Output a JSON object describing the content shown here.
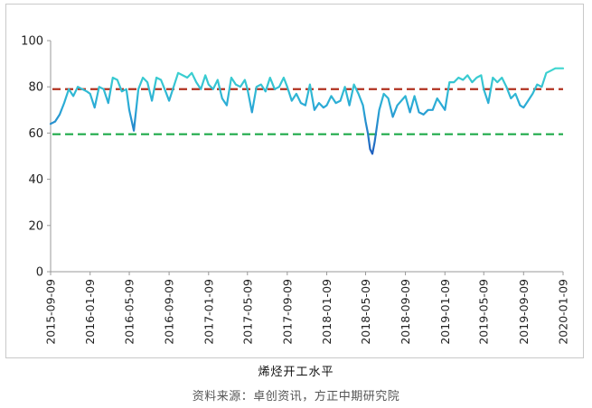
{
  "chart_data": {
    "type": "line",
    "title": "",
    "xlabel": "",
    "ylabel": "",
    "ylim": [
      0,
      100
    ],
    "yticks": [
      0,
      20,
      40,
      60,
      80,
      100
    ],
    "x_ticks": [
      "2015-09-09",
      "2016-01-09",
      "2016-05-09",
      "2016-09-09",
      "2017-01-09",
      "2017-05-09",
      "2017-09-09",
      "2018-01-09",
      "2018-05-09",
      "2018-09-09",
      "2019-01-09",
      "2019-05-09",
      "2019-09-09",
      "2020-01-09"
    ],
    "grid": false,
    "series": [
      {
        "name": "烯烃开工水平",
        "color_start": "#1f5fbf",
        "color_end": "#3ed6cf",
        "points": [
          [
            "2015-09-09",
            64
          ],
          [
            "2015-09-23",
            65
          ],
          [
            "2015-10-07",
            68
          ],
          [
            "2015-10-21",
            73
          ],
          [
            "2015-11-04",
            79
          ],
          [
            "2015-11-18",
            76
          ],
          [
            "2015-12-02",
            80
          ],
          [
            "2015-12-16",
            79
          ],
          [
            "2015-12-30",
            78
          ],
          [
            "2016-01-09",
            77
          ],
          [
            "2016-01-23",
            71
          ],
          [
            "2016-02-06",
            80
          ],
          [
            "2016-02-20",
            79
          ],
          [
            "2016-03-05",
            73
          ],
          [
            "2016-03-19",
            84
          ],
          [
            "2016-04-02",
            83
          ],
          [
            "2016-04-16",
            78
          ],
          [
            "2016-04-30",
            79
          ],
          [
            "2016-05-09",
            70
          ],
          [
            "2016-05-23",
            61
          ],
          [
            "2016-06-06",
            79
          ],
          [
            "2016-06-20",
            84
          ],
          [
            "2016-07-04",
            82
          ],
          [
            "2016-07-18",
            74
          ],
          [
            "2016-08-01",
            84
          ],
          [
            "2016-08-15",
            83
          ],
          [
            "2016-08-29",
            78
          ],
          [
            "2016-09-09",
            74
          ],
          [
            "2016-09-23",
            80
          ],
          [
            "2016-10-07",
            86
          ],
          [
            "2016-10-21",
            85
          ],
          [
            "2016-11-04",
            84
          ],
          [
            "2016-11-18",
            86
          ],
          [
            "2016-12-02",
            82
          ],
          [
            "2016-12-16",
            79
          ],
          [
            "2016-12-30",
            85
          ],
          [
            "2017-01-09",
            81
          ],
          [
            "2017-01-23",
            79
          ],
          [
            "2017-02-06",
            83
          ],
          [
            "2017-02-20",
            75
          ],
          [
            "2017-03-06",
            72
          ],
          [
            "2017-03-20",
            84
          ],
          [
            "2017-04-03",
            81
          ],
          [
            "2017-04-17",
            80
          ],
          [
            "2017-05-01",
            83
          ],
          [
            "2017-05-09",
            79
          ],
          [
            "2017-05-23",
            69
          ],
          [
            "2017-06-06",
            80
          ],
          [
            "2017-06-20",
            81
          ],
          [
            "2017-07-04",
            78
          ],
          [
            "2017-07-18",
            84
          ],
          [
            "2017-08-01",
            79
          ],
          [
            "2017-08-15",
            80
          ],
          [
            "2017-08-29",
            84
          ],
          [
            "2017-09-09",
            80
          ],
          [
            "2017-09-23",
            74
          ],
          [
            "2017-10-07",
            77
          ],
          [
            "2017-10-21",
            73
          ],
          [
            "2017-11-04",
            72
          ],
          [
            "2017-11-18",
            81
          ],
          [
            "2017-12-02",
            70
          ],
          [
            "2017-12-16",
            73
          ],
          [
            "2017-12-30",
            71
          ],
          [
            "2018-01-09",
            72
          ],
          [
            "2018-01-23",
            76
          ],
          [
            "2018-02-06",
            73
          ],
          [
            "2018-02-20",
            74
          ],
          [
            "2018-03-06",
            80
          ],
          [
            "2018-03-20",
            72
          ],
          [
            "2018-04-03",
            81
          ],
          [
            "2018-04-17",
            77
          ],
          [
            "2018-05-01",
            72
          ],
          [
            "2018-05-09",
            65
          ],
          [
            "2018-05-16",
            60
          ],
          [
            "2018-05-23",
            53
          ],
          [
            "2018-05-30",
            51
          ],
          [
            "2018-06-06",
            56
          ],
          [
            "2018-06-20",
            70
          ],
          [
            "2018-07-04",
            77
          ],
          [
            "2018-07-18",
            75
          ],
          [
            "2018-08-01",
            67
          ],
          [
            "2018-08-15",
            72
          ],
          [
            "2018-09-09",
            76
          ],
          [
            "2018-09-23",
            69
          ],
          [
            "2018-10-07",
            76
          ],
          [
            "2018-10-21",
            69
          ],
          [
            "2018-11-04",
            68
          ],
          [
            "2018-11-18",
            70
          ],
          [
            "2018-12-02",
            70
          ],
          [
            "2018-12-16",
            75
          ],
          [
            "2019-01-09",
            70
          ],
          [
            "2019-01-23",
            82
          ],
          [
            "2019-02-06",
            82
          ],
          [
            "2019-02-20",
            84
          ],
          [
            "2019-03-06",
            83
          ],
          [
            "2019-03-20",
            85
          ],
          [
            "2019-04-03",
            82
          ],
          [
            "2019-04-17",
            84
          ],
          [
            "2019-05-01",
            85
          ],
          [
            "2019-05-09",
            79
          ],
          [
            "2019-05-23",
            73
          ],
          [
            "2019-06-06",
            84
          ],
          [
            "2019-06-20",
            82
          ],
          [
            "2019-07-04",
            84
          ],
          [
            "2019-07-18",
            80
          ],
          [
            "2019-08-01",
            75
          ],
          [
            "2019-08-15",
            77
          ],
          [
            "2019-08-29",
            72
          ],
          [
            "2019-09-09",
            71
          ],
          [
            "2019-09-23",
            74
          ],
          [
            "2019-10-07",
            77
          ],
          [
            "2019-10-21",
            81
          ],
          [
            "2019-11-04",
            80
          ],
          [
            "2019-11-18",
            86
          ],
          [
            "2019-12-02",
            87
          ],
          [
            "2019-12-16",
            88
          ],
          [
            "2020-01-09",
            88
          ]
        ]
      }
    ],
    "reference_lines": [
      {
        "value": 79,
        "color": "#b0301f",
        "style": "dashed"
      },
      {
        "value": 59.5,
        "color": "#1faa4a",
        "style": "dashed"
      }
    ]
  },
  "legend": {
    "label": "烯烃开工水平"
  },
  "source": {
    "text": "资料来源：卓创资讯，方正中期研究院"
  }
}
